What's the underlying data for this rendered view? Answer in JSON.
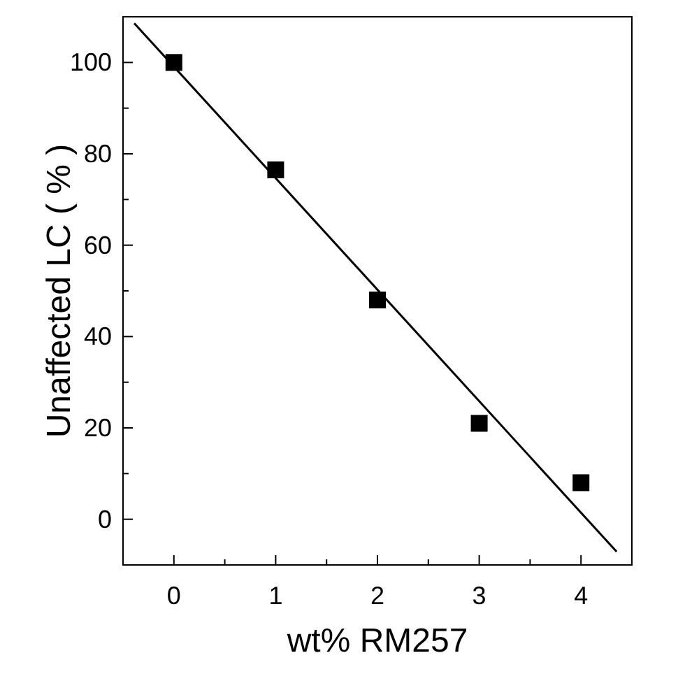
{
  "chart_data": {
    "type": "scatter",
    "xlabel": "wt% RM257",
    "ylabel": "Unaffected LC ( % )",
    "x": [
      0,
      1,
      2,
      3,
      4
    ],
    "series": [
      {
        "color": "#000000",
        "values": [
          100,
          76.5,
          48,
          21,
          8
        ],
        "marker": "square"
      },
      {
        "type": "line",
        "color": "#000000",
        "x": [
          -0.39,
          4.35
        ],
        "values": [
          108.6,
          -7.1
        ]
      }
    ],
    "xlim": [
      -0.5,
      4.5
    ],
    "ylim": [
      -10,
      110
    ],
    "xticks": [
      {
        "value": -0.5,
        "label": null
      },
      0,
      {
        "value": 0.5,
        "label": null
      },
      1,
      {
        "value": 1.5,
        "label": null
      },
      2,
      {
        "value": 2.5,
        "label": null
      },
      3,
      {
        "value": 3.5,
        "label": null
      },
      4
    ],
    "yticks": [
      0,
      {
        "value": 10,
        "label": null
      },
      20,
      {
        "value": 30,
        "label": null
      },
      40,
      {
        "value": 50,
        "label": null
      },
      60,
      {
        "value": 70,
        "label": null
      },
      80,
      {
        "value": 90,
        "label": null
      },
      100
    ],
    "grid": false
  }
}
